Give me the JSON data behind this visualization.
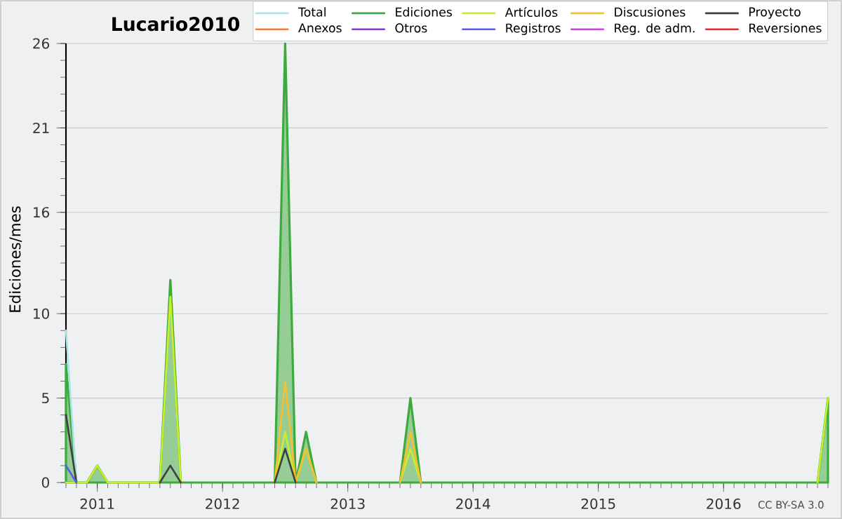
{
  "chart_data": {
    "type": "line",
    "title": "Lucario2010",
    "ylabel": "Ediciones/mes",
    "x": [
      "2010-10",
      "2010-11",
      "2010-12",
      "2011-01",
      "2011-02",
      "2011-03",
      "2011-04",
      "2011-05",
      "2011-06",
      "2011-07",
      "2011-08",
      "2011-09",
      "2011-10",
      "2011-11",
      "2011-12",
      "2012-01",
      "2012-02",
      "2012-03",
      "2012-04",
      "2012-05",
      "2012-06",
      "2012-07",
      "2012-08",
      "2012-09",
      "2012-10",
      "2012-11",
      "2012-12",
      "2013-01",
      "2013-02",
      "2013-03",
      "2013-04",
      "2013-05",
      "2013-06",
      "2013-07",
      "2013-08",
      "2013-09",
      "2013-10",
      "2013-11",
      "2013-12",
      "2014-01",
      "2014-02",
      "2014-03",
      "2014-04",
      "2014-05",
      "2014-06",
      "2014-07",
      "2014-08",
      "2014-09",
      "2014-10",
      "2014-11",
      "2014-12",
      "2015-01",
      "2015-02",
      "2015-03",
      "2015-04",
      "2015-05",
      "2015-06",
      "2015-07",
      "2015-08",
      "2015-09",
      "2015-10",
      "2015-11",
      "2015-12",
      "2016-01",
      "2016-02",
      "2016-03",
      "2016-04",
      "2016-05",
      "2016-06",
      "2016-07",
      "2016-08",
      "2016-09",
      "2016-10",
      "2016-11"
    ],
    "series": [
      {
        "name": "Total",
        "color": "#a8e4e4",
        "values": [
          9,
          0,
          null,
          null,
          null,
          null,
          null,
          null,
          null,
          null,
          null,
          null,
          null,
          null,
          null,
          null,
          null,
          null,
          null,
          null,
          null,
          null,
          null,
          null,
          null,
          null,
          null,
          null,
          null,
          null,
          null,
          null,
          null,
          null,
          null,
          null,
          null,
          null,
          null,
          null,
          null,
          null,
          null,
          null,
          null,
          null,
          null,
          null,
          null,
          null,
          null,
          null,
          null,
          null,
          null,
          null,
          null,
          null,
          null,
          null,
          null,
          null,
          null,
          null,
          null,
          null,
          null,
          null,
          null,
          null,
          null,
          null,
          null,
          null
        ]
      },
      {
        "name": "Ediciones",
        "type": "area",
        "color": "#3daa3d",
        "values": [
          7,
          0,
          0,
          1,
          0,
          0,
          0,
          0,
          0,
          0,
          12,
          0,
          0,
          0,
          0,
          0,
          0,
          0,
          0,
          0,
          0,
          26,
          0,
          3,
          0,
          0,
          0,
          0,
          0,
          0,
          0,
          0,
          0,
          5,
          0,
          0,
          0,
          0,
          0,
          0,
          0,
          0,
          0,
          0,
          0,
          0,
          0,
          0,
          0,
          0,
          0,
          0,
          0,
          0,
          0,
          0,
          0,
          0,
          0,
          0,
          0,
          0,
          0,
          0,
          0,
          0,
          0,
          0,
          0,
          0,
          0,
          0,
          0,
          5
        ]
      },
      {
        "name": "Artículos",
        "color": "#c8f028",
        "values": [
          0,
          0,
          0,
          1,
          0,
          0,
          0,
          0,
          0,
          0,
          11,
          0,
          null,
          null,
          null,
          null,
          null,
          null,
          null,
          null,
          0,
          3,
          0,
          2,
          0,
          null,
          null,
          null,
          null,
          null,
          null,
          null,
          0,
          2,
          0,
          null,
          null,
          null,
          null,
          null,
          null,
          null,
          null,
          null,
          null,
          null,
          null,
          null,
          null,
          null,
          null,
          null,
          null,
          null,
          null,
          null,
          null,
          null,
          null,
          null,
          null,
          null,
          null,
          null,
          null,
          null,
          null,
          null,
          null,
          null,
          null,
          null,
          0,
          5
        ]
      },
      {
        "name": "Discusiones",
        "color": "#f5c030",
        "values": [
          null,
          null,
          null,
          null,
          null,
          null,
          null,
          null,
          null,
          null,
          null,
          null,
          null,
          null,
          null,
          null,
          null,
          null,
          null,
          null,
          0,
          6,
          0,
          2,
          0,
          null,
          null,
          null,
          null,
          null,
          null,
          null,
          0,
          3,
          0,
          null,
          null,
          null,
          null,
          null,
          null,
          null,
          null,
          null,
          null,
          null,
          null,
          null,
          null,
          null,
          null,
          null,
          null,
          null,
          null,
          null,
          null,
          null,
          null,
          null,
          null,
          null,
          null,
          null,
          null,
          null,
          null,
          null,
          null,
          null,
          null,
          null,
          null,
          null
        ]
      },
      {
        "name": "Proyecto",
        "color": "#404040",
        "values": [
          4,
          0,
          null,
          null,
          null,
          null,
          null,
          null,
          null,
          0,
          1,
          0,
          null,
          null,
          null,
          null,
          null,
          null,
          null,
          null,
          0,
          2,
          0,
          null,
          null,
          null,
          null,
          null,
          null,
          null,
          null,
          null,
          null,
          null,
          null,
          null,
          null,
          null,
          null,
          null,
          null,
          null,
          null,
          null,
          null,
          null,
          null,
          null,
          null,
          null,
          null,
          null,
          null,
          null,
          null,
          null,
          null,
          null,
          null,
          null,
          null,
          null,
          null,
          null,
          null,
          null,
          null,
          null,
          null,
          null,
          null,
          null,
          null,
          null
        ]
      },
      {
        "name": "Anexos",
        "color": "#f08040",
        "values": [
          null,
          null,
          null,
          null,
          null,
          null,
          null,
          null,
          null,
          null,
          null,
          null,
          null,
          null,
          null,
          null,
          null,
          null,
          null,
          null,
          null,
          null,
          null,
          null,
          null,
          null,
          null,
          null,
          null,
          null,
          null,
          null,
          null,
          null,
          null,
          null,
          null,
          null,
          null,
          null,
          null,
          null,
          null,
          null,
          null,
          null,
          null,
          null,
          null,
          null,
          null,
          null,
          null,
          null,
          null,
          null,
          null,
          null,
          null,
          null,
          null,
          null,
          null,
          null,
          null,
          null,
          null,
          null,
          null,
          null,
          null,
          null,
          null,
          null
        ]
      },
      {
        "name": "Otros",
        "color": "#8040c8",
        "values": [
          null,
          null,
          null,
          null,
          null,
          null,
          null,
          null,
          null,
          null,
          null,
          null,
          null,
          null,
          null,
          null,
          null,
          null,
          null,
          null,
          null,
          null,
          null,
          null,
          null,
          null,
          null,
          null,
          null,
          null,
          null,
          null,
          null,
          null,
          null,
          null,
          null,
          null,
          null,
          null,
          null,
          null,
          null,
          null,
          null,
          null,
          null,
          null,
          null,
          null,
          null,
          null,
          null,
          null,
          null,
          null,
          null,
          null,
          null,
          null,
          null,
          null,
          null,
          null,
          null,
          null,
          null,
          null,
          null,
          null,
          null,
          null,
          null,
          null
        ]
      },
      {
        "name": "Registros",
        "color": "#5a5aee",
        "values": [
          1,
          0,
          null,
          null,
          null,
          null,
          null,
          null,
          null,
          null,
          null,
          null,
          null,
          null,
          null,
          null,
          null,
          null,
          null,
          null,
          null,
          null,
          null,
          null,
          null,
          null,
          null,
          null,
          null,
          null,
          null,
          null,
          null,
          null,
          null,
          null,
          null,
          null,
          null,
          null,
          null,
          null,
          null,
          null,
          null,
          null,
          null,
          null,
          null,
          null,
          null,
          null,
          null,
          null,
          null,
          null,
          null,
          null,
          null,
          null,
          null,
          null,
          null,
          null,
          null,
          null,
          null,
          null,
          null,
          null,
          null,
          null,
          null,
          null
        ]
      },
      {
        "name": "Reg. de adm.",
        "color": "#cc44dd",
        "values": [
          null,
          null,
          null,
          null,
          null,
          null,
          null,
          null,
          null,
          null,
          null,
          null,
          null,
          null,
          null,
          null,
          null,
          null,
          null,
          null,
          null,
          null,
          null,
          null,
          null,
          null,
          null,
          null,
          null,
          null,
          null,
          null,
          null,
          null,
          null,
          null,
          null,
          null,
          null,
          null,
          null,
          null,
          null,
          null,
          null,
          null,
          null,
          null,
          null,
          null,
          null,
          null,
          null,
          null,
          null,
          null,
          null,
          null,
          null,
          null,
          null,
          null,
          null,
          null,
          null,
          null,
          null,
          null,
          null,
          null,
          null,
          null,
          null,
          null
        ]
      },
      {
        "name": "Reversiones",
        "color": "#e03030",
        "values": [
          null,
          null,
          null,
          null,
          null,
          null,
          null,
          null,
          null,
          null,
          null,
          null,
          null,
          null,
          null,
          null,
          null,
          null,
          null,
          null,
          null,
          null,
          null,
          null,
          null,
          null,
          null,
          null,
          null,
          null,
          null,
          null,
          null,
          null,
          null,
          null,
          null,
          null,
          null,
          null,
          null,
          null,
          null,
          null,
          null,
          null,
          null,
          null,
          null,
          null,
          null,
          null,
          null,
          null,
          null,
          null,
          null,
          null,
          null,
          null,
          null,
          null,
          null,
          null,
          null,
          null,
          null,
          null,
          null,
          null,
          null,
          null,
          null,
          null
        ]
      }
    ],
    "xlim": [
      "2010-10",
      "2016-11"
    ],
    "xticks": [
      {
        "value": "2011-01",
        "label": "2011"
      },
      {
        "value": "2012-01",
        "label": "2012"
      },
      {
        "value": "2013-01",
        "label": "2013"
      },
      {
        "value": "2014-01",
        "label": "2014"
      },
      {
        "value": "2015-01",
        "label": "2015"
      },
      {
        "value": "2016-01",
        "label": "2016"
      }
    ],
    "ylim": [
      0,
      26
    ],
    "yticks": [
      0,
      5,
      10,
      16,
      21,
      26
    ],
    "grid": "y",
    "legend": "top right",
    "marker": "none",
    "annotations": [
      "CC BY-SA 3.0"
    ]
  }
}
